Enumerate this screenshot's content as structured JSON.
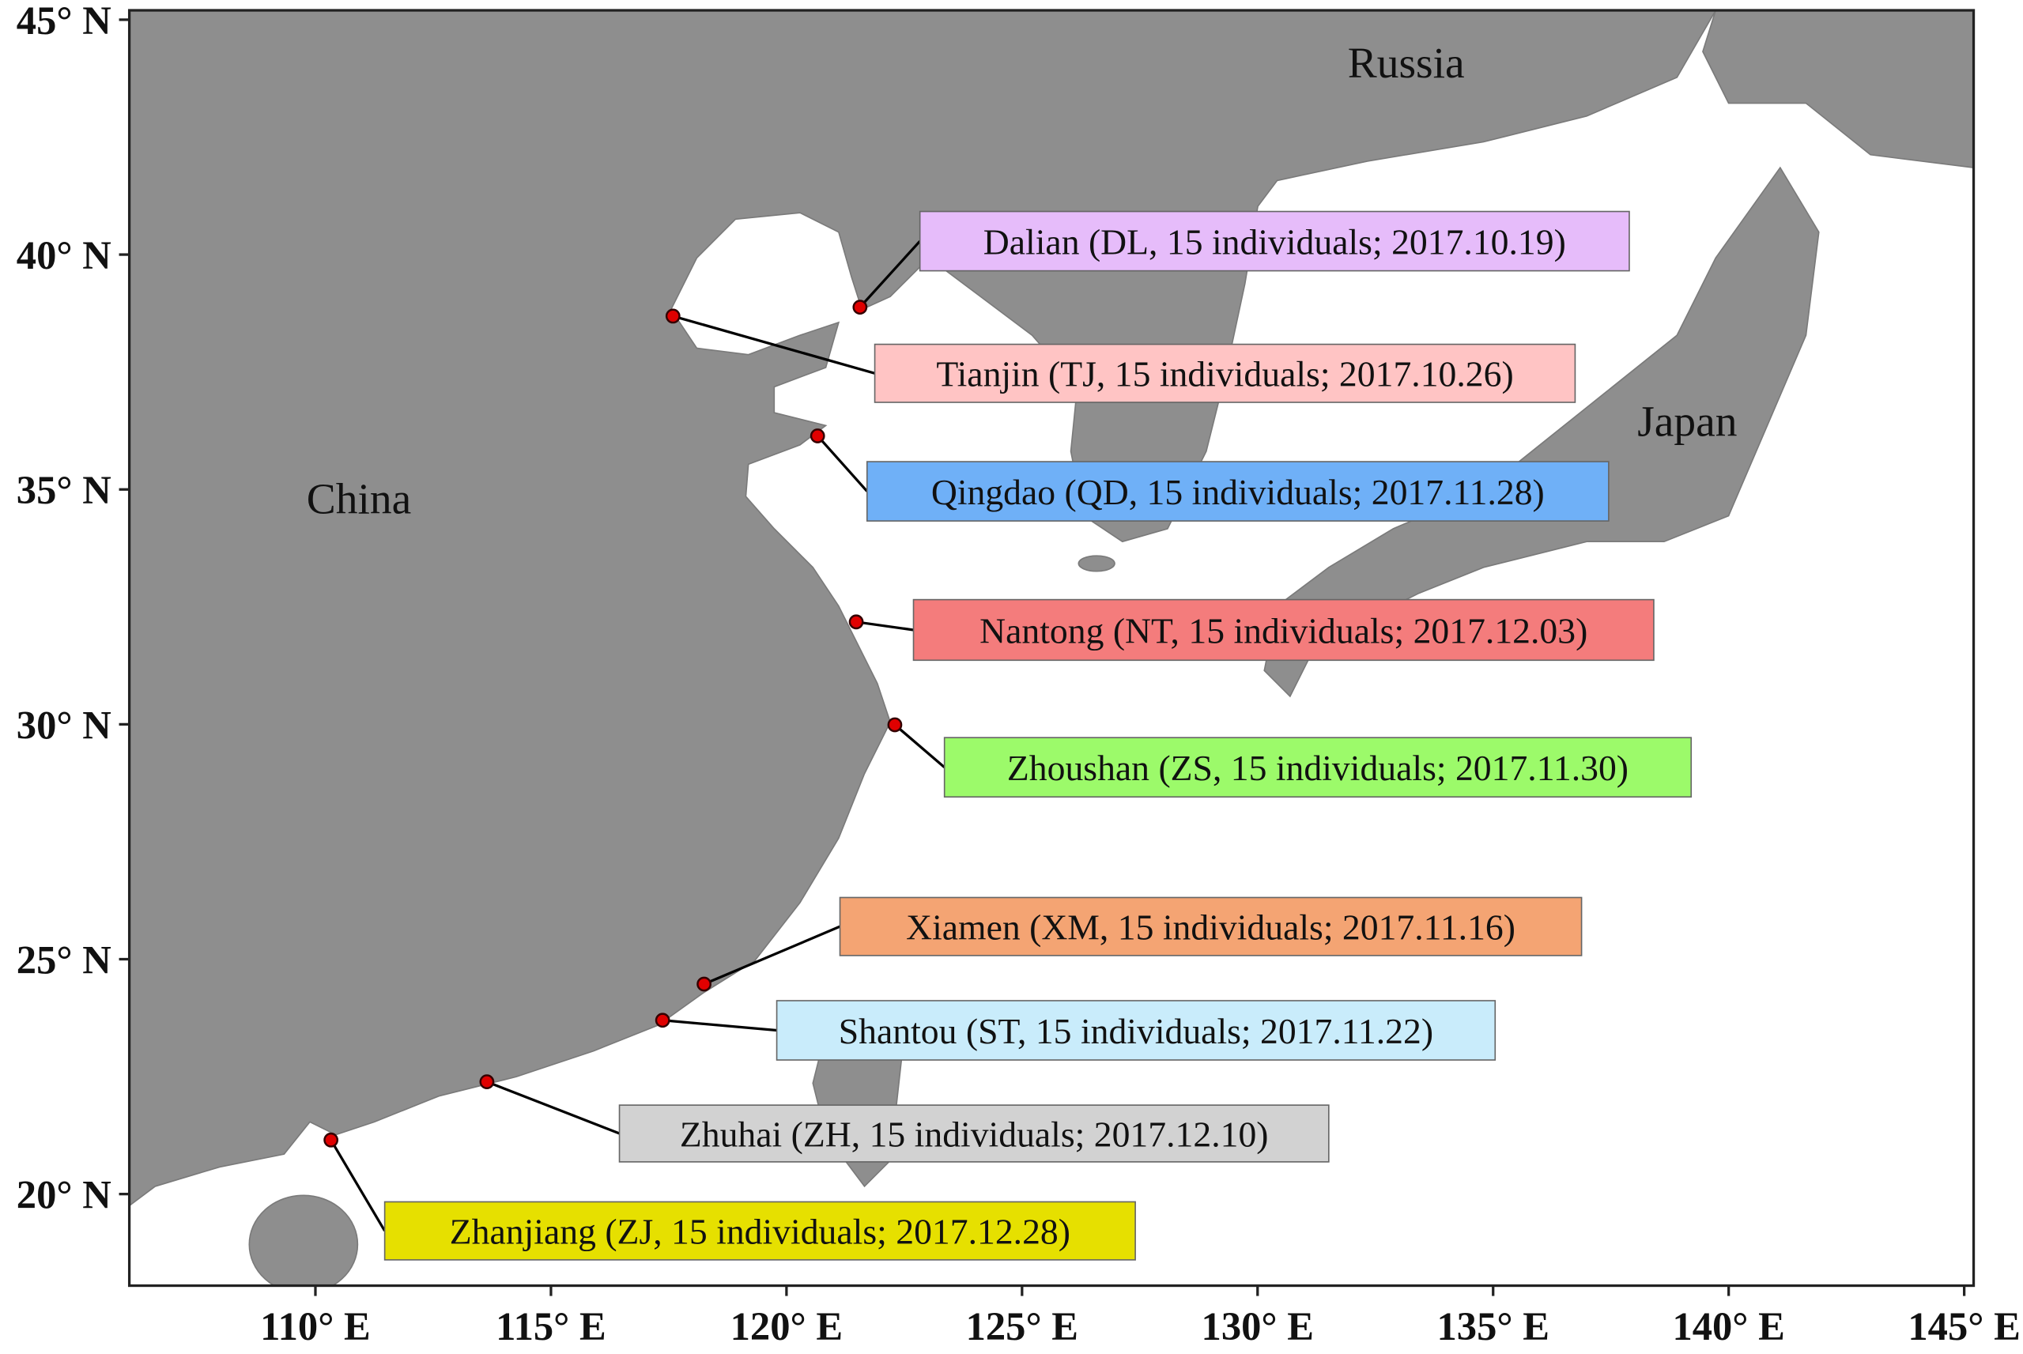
{
  "map": {
    "xlim": [
      106.05,
      145.2
    ],
    "ylim": [
      18.05,
      45.2
    ],
    "xticks": [
      {
        "value": 110,
        "label": "110° E"
      },
      {
        "value": 115,
        "label": "115° E"
      },
      {
        "value": 120,
        "label": "120° E"
      },
      {
        "value": 125,
        "label": "125° E"
      },
      {
        "value": 130,
        "label": "130° E"
      },
      {
        "value": 135,
        "label": "135° E"
      },
      {
        "value": 140,
        "label": "140° E"
      },
      {
        "value": 145,
        "label": "145° E"
      }
    ],
    "yticks": [
      {
        "value": 20,
        "label": "20° N"
      },
      {
        "value": 25,
        "label": "25° N"
      },
      {
        "value": 30,
        "label": "30° N"
      },
      {
        "value": 35,
        "label": "35° N"
      },
      {
        "value": 40,
        "label": "40° N"
      },
      {
        "value": 45,
        "label": "45° N"
      }
    ],
    "regions": [
      "China",
      "Russia",
      "Japan"
    ],
    "sites": [
      {
        "label": "Dalian (DL, 15 individuals; 2017.10.19)",
        "lon": 121.56,
        "lat": 38.88,
        "color": "#e6bcfa"
      },
      {
        "label": "Tianjin (TJ, 15 individuals; 2017.10.26)",
        "lon": 117.59,
        "lat": 38.69,
        "color": "#ffc4c4"
      },
      {
        "label": "Qingdao (QD, 15 individuals; 2017.11.28)",
        "lon": 120.66,
        "lat": 36.14,
        "color": "#6fb0f7"
      },
      {
        "label": "Nantong (NT, 15 individuals; 2017.12.03)",
        "lon": 121.48,
        "lat": 32.18,
        "color": "#f47c7c"
      },
      {
        "label": "Zhoushan (ZS, 15 individuals; 2017.11.30)",
        "lon": 122.3,
        "lat": 29.99,
        "color": "#9cfa6a"
      },
      {
        "label": "Xiamen (XM, 15 individuals; 2017.11.16)",
        "lon": 118.25,
        "lat": 24.47,
        "color": "#f4a473"
      },
      {
        "label": "Shantou (ST, 15 individuals; 2017.11.22)",
        "lon": 117.37,
        "lat": 23.7,
        "color": "#c9ecfb"
      },
      {
        "label": "Zhuhai (ZH, 15 individuals; 2017.12.10)",
        "lon": 113.64,
        "lat": 22.39,
        "color": "#d2d2d2"
      },
      {
        "label": "Zhanjiang (ZJ, 15 individuals; 2017.12.28)",
        "lon": 110.33,
        "lat": 21.15,
        "color": "#e6e000"
      }
    ]
  }
}
